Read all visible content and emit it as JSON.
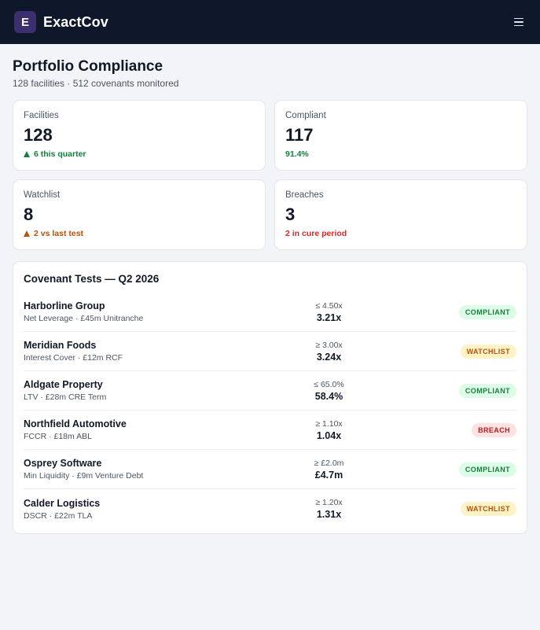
{
  "app": {
    "logo_letter": "E",
    "name": "ExactCov",
    "menu_icon": "hamburger-menu-icon"
  },
  "page": {
    "title": "Portfolio Compliance",
    "subtitle": "128 facilities · 512 covenants monitored"
  },
  "stats": [
    {
      "label": "Facilities",
      "value": "128",
      "note": "6 this quarter",
      "note_icon": "triangle-up-icon",
      "tone": "green"
    },
    {
      "label": "Compliant",
      "value": "117",
      "note": "91.4%",
      "tone": "green"
    },
    {
      "label": "Watchlist",
      "value": "8",
      "note": "2 vs last test",
      "note_icon": "triangle-up-icon",
      "tone": "amber"
    },
    {
      "label": "Breaches",
      "value": "3",
      "note": "2 in cure period",
      "tone": "red"
    }
  ],
  "tests": {
    "title": "Covenant Tests — Q2 2026",
    "rows": [
      {
        "name": "Harborline Group",
        "desc": "Net Leverage · £45m Unitranche",
        "threshold": "≤ 4.50x",
        "actual": "3.21x",
        "status": "COMPLIANT"
      },
      {
        "name": "Meridian Foods",
        "desc": "Interest Cover · £12m RCF",
        "threshold": "≥ 3.00x",
        "actual": "3.24x",
        "status": "WATCHLIST"
      },
      {
        "name": "Aldgate Property",
        "desc": "LTV · £28m CRE Term",
        "threshold": "≤ 65.0%",
        "actual": "58.4%",
        "status": "COMPLIANT"
      },
      {
        "name": "Northfield Automotive",
        "desc": "FCCR · £18m ABL",
        "threshold": "≥ 1.10x",
        "actual": "1.04x",
        "status": "BREACH"
      },
      {
        "name": "Osprey Software",
        "desc": "Min Liquidity · £9m Venture Debt",
        "threshold": "≥ £2.0m",
        "actual": "£4.7m",
        "status": "COMPLIANT"
      },
      {
        "name": "Calder Logistics",
        "desc": "DSCR · £22m TLA",
        "threshold": "≥ 1.20x",
        "actual": "1.31x",
        "status": "WATCHLIST"
      }
    ]
  },
  "colors": {
    "topbar": "#0f172a",
    "logo_bg": "#3b2f6e",
    "compliant": "#15803d",
    "watchlist": "#b45309",
    "breach": "#dc2626"
  }
}
